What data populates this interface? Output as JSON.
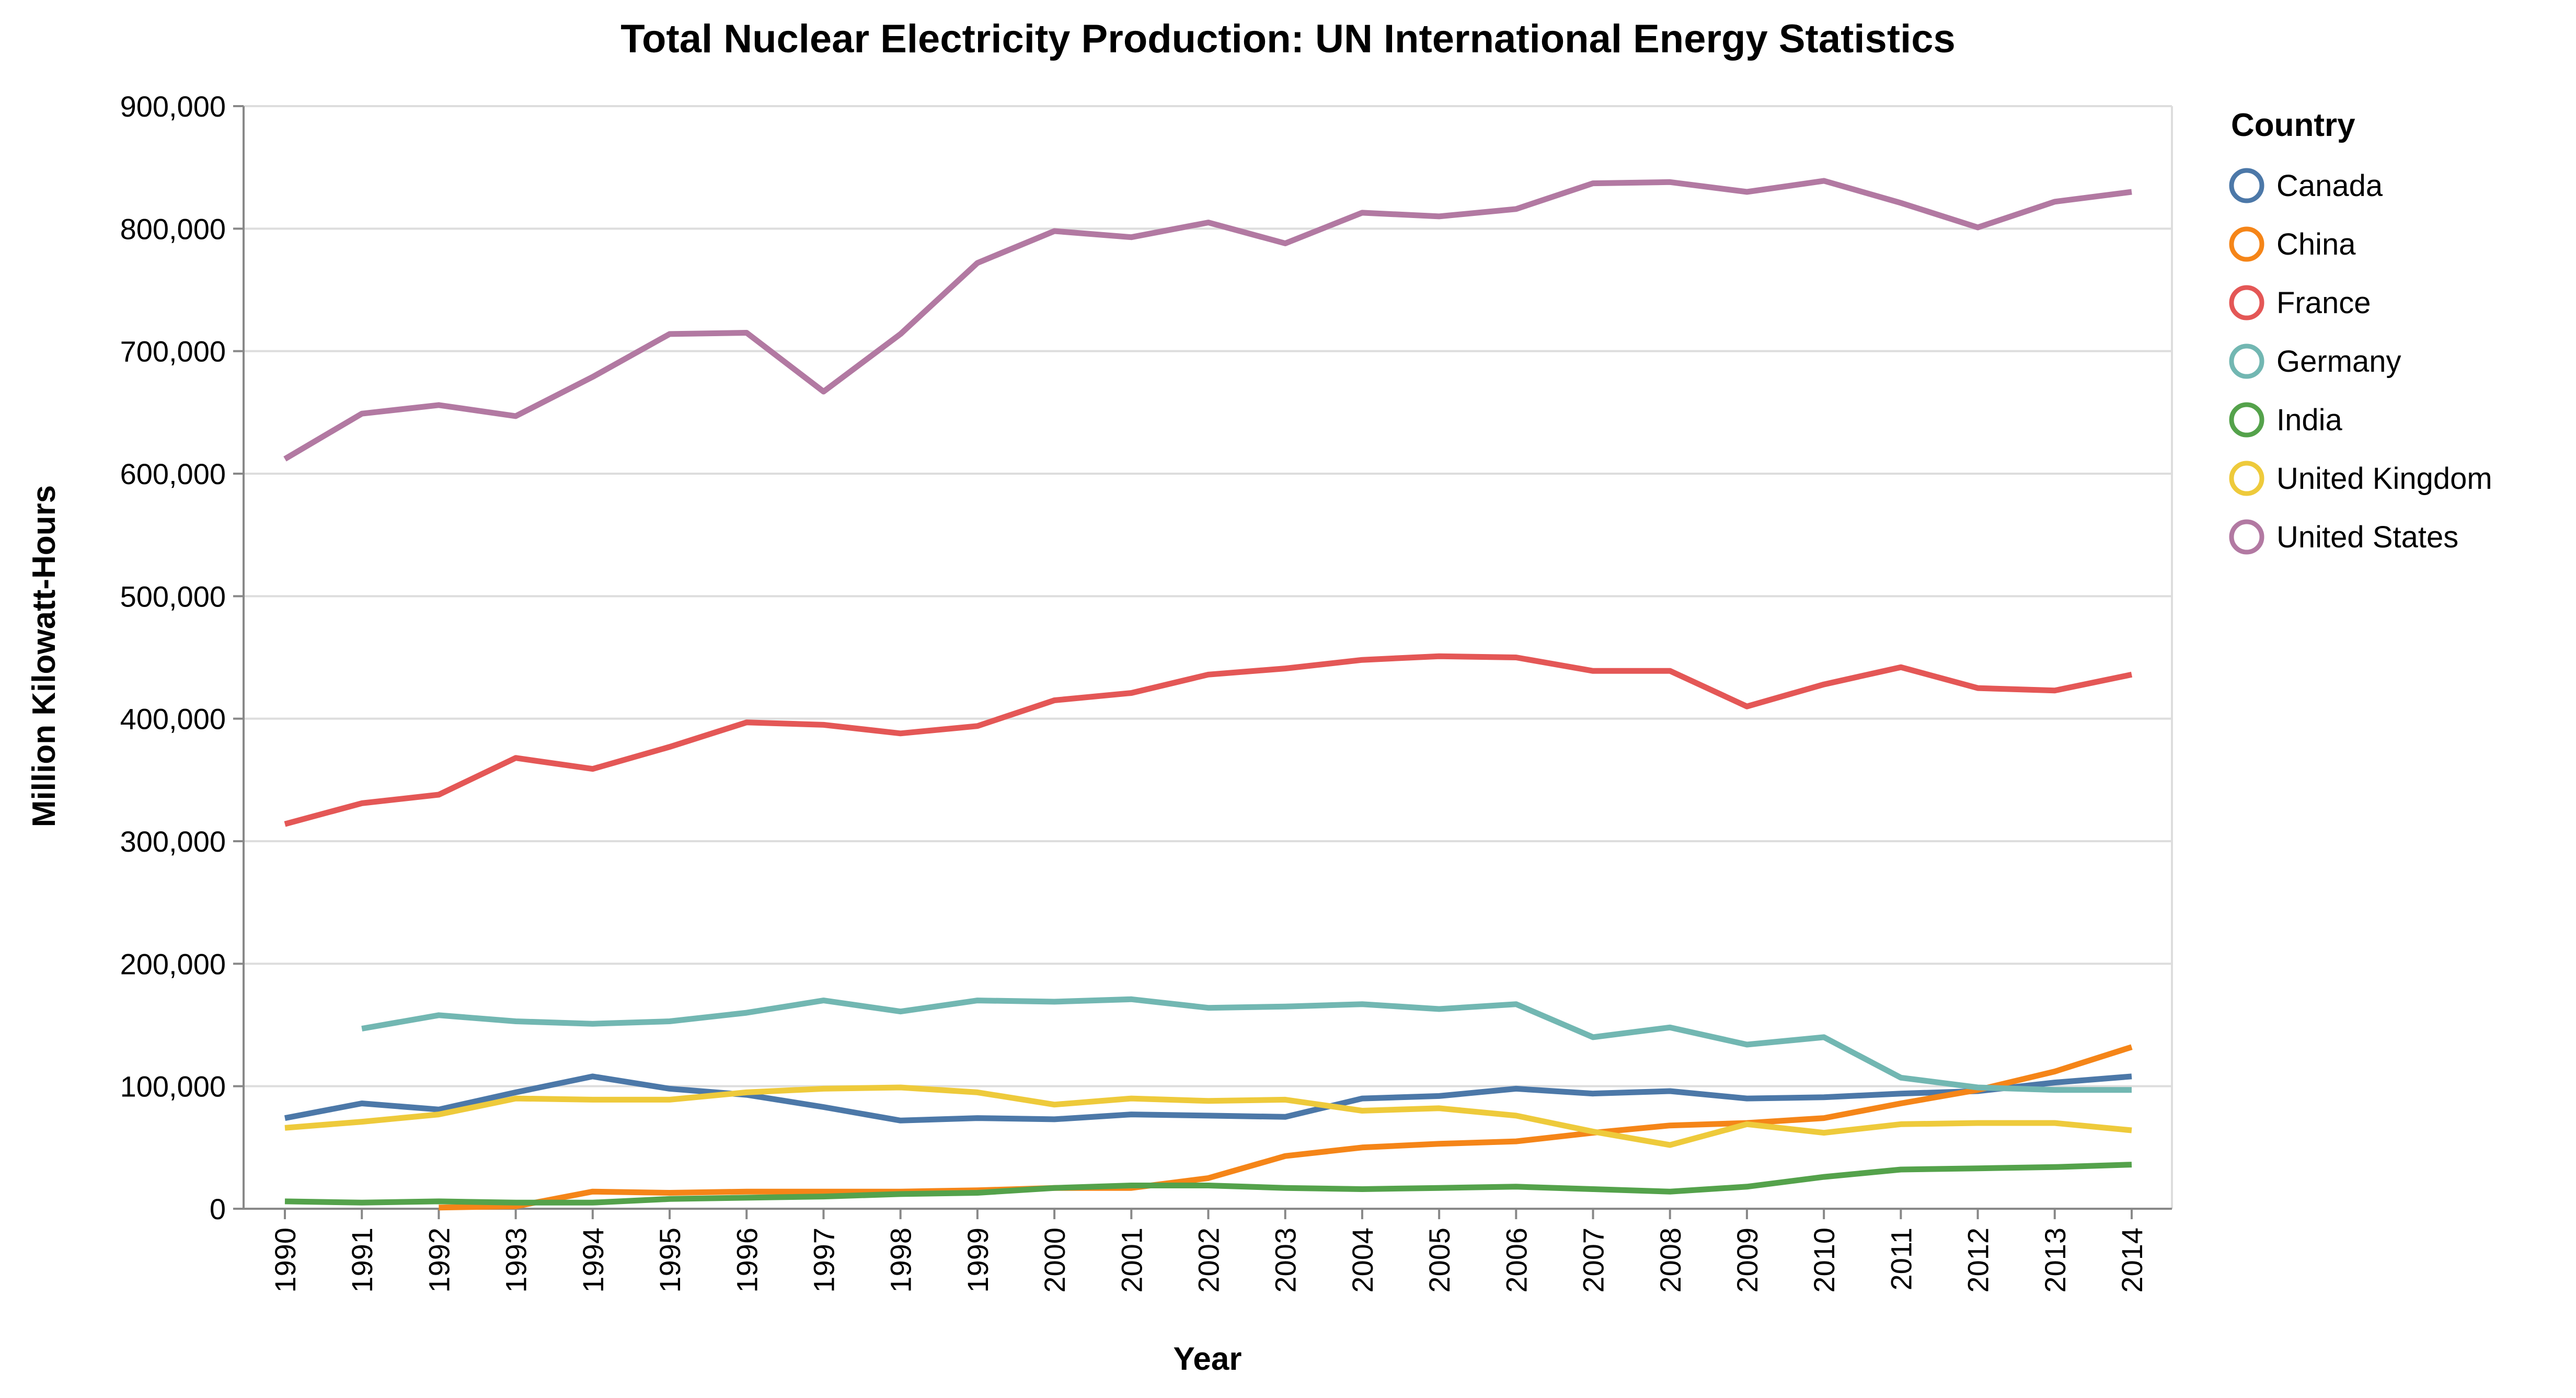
{
  "chart_data": {
    "type": "line",
    "title": "Total Nuclear Electricity Production: UN International Energy Statistics",
    "xlabel": "Year",
    "ylabel": "Million Kilowatt-Hours",
    "ylim": [
      0,
      900000
    ],
    "y_ticks": [
      0,
      100000,
      200000,
      300000,
      400000,
      500000,
      600000,
      700000,
      800000,
      900000
    ],
    "y_tick_labels": [
      "0",
      "100,000",
      "200,000",
      "300,000",
      "400,000",
      "500,000",
      "600,000",
      "700,000",
      "800,000",
      "900,000"
    ],
    "x": [
      "1990",
      "1991",
      "1992",
      "1993",
      "1994",
      "1995",
      "1996",
      "1997",
      "1998",
      "1999",
      "2000",
      "2001",
      "2002",
      "2003",
      "2004",
      "2005",
      "2006",
      "2007",
      "2008",
      "2009",
      "2010",
      "2011",
      "2012",
      "2013",
      "2014"
    ],
    "grid": true,
    "legend": {
      "title": "Country",
      "position": "right"
    },
    "series": [
      {
        "name": "Canada",
        "color": "#4c78a8",
        "values": [
          74000,
          86000,
          81000,
          95000,
          108000,
          98000,
          93000,
          83000,
          72000,
          74000,
          73000,
          77000,
          76000,
          75000,
          90000,
          92000,
          98000,
          94000,
          96000,
          90000,
          91000,
          94000,
          96000,
          103000,
          108000
        ]
      },
      {
        "name": "China",
        "color": "#f58518",
        "values": [
          null,
          null,
          1000,
          2000,
          14000,
          13000,
          14000,
          14000,
          14000,
          15000,
          17000,
          17000,
          25000,
          43000,
          50000,
          53000,
          55000,
          62000,
          68000,
          70000,
          74000,
          86000,
          97000,
          112000,
          132000
        ]
      },
      {
        "name": "France",
        "color": "#e45756",
        "values": [
          314000,
          331000,
          338000,
          368000,
          359000,
          377000,
          397000,
          395000,
          388000,
          394000,
          415000,
          421000,
          436000,
          441000,
          448000,
          451000,
          450000,
          439000,
          439000,
          410000,
          428000,
          442000,
          425000,
          423000,
          436000
        ]
      },
      {
        "name": "Germany",
        "color": "#72b7b2",
        "values": [
          null,
          147000,
          158000,
          153000,
          151000,
          153000,
          160000,
          170000,
          161000,
          170000,
          169000,
          171000,
          164000,
          165000,
          167000,
          163000,
          167000,
          140000,
          148000,
          134000,
          140000,
          107000,
          99000,
          97000,
          97000
        ]
      },
      {
        "name": "India",
        "color": "#54a24b",
        "values": [
          6000,
          5000,
          6000,
          5000,
          5000,
          8000,
          9000,
          10000,
          12000,
          13000,
          17000,
          19000,
          19000,
          17000,
          16000,
          17000,
          18000,
          16000,
          14000,
          18000,
          26000,
          32000,
          33000,
          34000,
          36000
        ]
      },
      {
        "name": "United Kingdom",
        "color": "#eeca3b",
        "values": [
          66000,
          71000,
          77000,
          90000,
          89000,
          89000,
          95000,
          98000,
          99000,
          95000,
          85000,
          90000,
          88000,
          89000,
          80000,
          82000,
          76000,
          63000,
          52000,
          69000,
          62000,
          69000,
          70000,
          70000,
          64000
        ]
      },
      {
        "name": "United States",
        "color": "#b279a2",
        "values": [
          612000,
          649000,
          656000,
          647000,
          679000,
          714000,
          715000,
          667000,
          714000,
          772000,
          798000,
          793000,
          805000,
          788000,
          813000,
          810000,
          816000,
          837000,
          838000,
          830000,
          839000,
          821000,
          801000,
          822000,
          830000
        ]
      }
    ]
  }
}
